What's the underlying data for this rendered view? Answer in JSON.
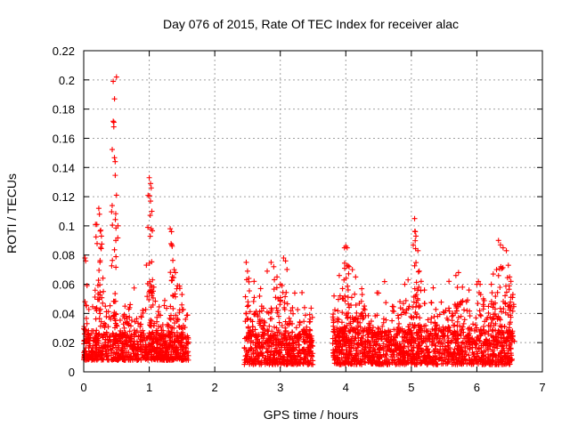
{
  "chart_data": {
    "type": "scatter",
    "title": "Day 076 of 2015, Rate Of TEC Index for receiver alac",
    "xlabel": "GPS time / hours",
    "ylabel": "ROTI / TECUs",
    "xlim": [
      0,
      7
    ],
    "ylim": [
      0,
      0.22
    ],
    "xticks": [
      0,
      1,
      2,
      3,
      4,
      5,
      6,
      7
    ],
    "yticks": [
      0,
      0.02,
      0.04,
      0.06,
      0.08,
      0.1,
      0.12,
      0.14,
      0.16,
      0.18,
      0.2,
      0.22
    ],
    "grid": true,
    "marker": "+",
    "marker_color": "#ff0000",
    "series": [
      {
        "name": "ROTI",
        "data_segments": [
          {
            "x_start": 0.0,
            "x_end": 1.6,
            "baseline": [
              0.008,
              0.025
            ]
          },
          {
            "x_start": 2.45,
            "x_end": 3.5,
            "baseline": [
              0.005,
              0.025
            ]
          },
          {
            "x_start": 3.8,
            "x_end": 6.55,
            "baseline": [
              0.005,
              0.028
            ]
          }
        ],
        "peaks": [
          {
            "x": 0.02,
            "y": 0.078
          },
          {
            "x": 0.03,
            "y": 0.076
          },
          {
            "x": 0.02,
            "y": 0.048
          },
          {
            "x": 0.18,
            "y": 0.101
          },
          {
            "x": 0.2,
            "y": 0.101
          },
          {
            "x": 0.23,
            "y": 0.112
          },
          {
            "x": 0.24,
            "y": 0.108
          },
          {
            "x": 0.26,
            "y": 0.097
          },
          {
            "x": 0.27,
            "y": 0.093
          },
          {
            "x": 0.3,
            "y": 0.055
          },
          {
            "x": 0.33,
            "y": 0.045
          },
          {
            "x": 0.45,
            "y": 0.199
          },
          {
            "x": 0.5,
            "y": 0.202
          },
          {
            "x": 0.47,
            "y": 0.187
          },
          {
            "x": 0.46,
            "y": 0.171
          },
          {
            "x": 0.48,
            "y": 0.144
          },
          {
            "x": 0.5,
            "y": 0.121
          },
          {
            "x": 0.49,
            "y": 0.09
          },
          {
            "x": 0.63,
            "y": 0.045
          },
          {
            "x": 0.7,
            "y": 0.044
          },
          {
            "x": 0.98,
            "y": 0.099
          },
          {
            "x": 1.0,
            "y": 0.133
          },
          {
            "x": 1.02,
            "y": 0.129
          },
          {
            "x": 1.03,
            "y": 0.126
          },
          {
            "x": 1.02,
            "y": 0.117
          },
          {
            "x": 1.04,
            "y": 0.11
          },
          {
            "x": 1.05,
            "y": 0.063
          },
          {
            "x": 1.07,
            "y": 0.058
          },
          {
            "x": 1.32,
            "y": 0.098
          },
          {
            "x": 1.34,
            "y": 0.096
          },
          {
            "x": 1.35,
            "y": 0.086
          },
          {
            "x": 1.38,
            "y": 0.07
          },
          {
            "x": 1.4,
            "y": 0.068
          },
          {
            "x": 1.43,
            "y": 0.059
          },
          {
            "x": 1.5,
            "y": 0.053
          },
          {
            "x": 2.48,
            "y": 0.075
          },
          {
            "x": 2.5,
            "y": 0.069
          },
          {
            "x": 2.52,
            "y": 0.064
          },
          {
            "x": 2.6,
            "y": 0.062
          },
          {
            "x": 2.7,
            "y": 0.057
          },
          {
            "x": 2.8,
            "y": 0.069
          },
          {
            "x": 2.86,
            "y": 0.075
          },
          {
            "x": 2.9,
            "y": 0.072
          },
          {
            "x": 2.95,
            "y": 0.065
          },
          {
            "x": 3.0,
            "y": 0.06
          },
          {
            "x": 3.05,
            "y": 0.078
          },
          {
            "x": 3.08,
            "y": 0.076
          },
          {
            "x": 3.45,
            "y": 0.029
          },
          {
            "x": 3.4,
            "y": 0.028
          },
          {
            "x": 3.82,
            "y": 0.052
          },
          {
            "x": 3.9,
            "y": 0.066
          },
          {
            "x": 3.95,
            "y": 0.057
          },
          {
            "x": 3.98,
            "y": 0.085
          },
          {
            "x": 4.0,
            "y": 0.086
          },
          {
            "x": 4.02,
            "y": 0.085
          },
          {
            "x": 4.05,
            "y": 0.072
          },
          {
            "x": 4.1,
            "y": 0.07
          },
          {
            "x": 4.15,
            "y": 0.065
          },
          {
            "x": 4.25,
            "y": 0.053
          },
          {
            "x": 4.9,
            "y": 0.06
          },
          {
            "x": 4.95,
            "y": 0.063
          },
          {
            "x": 5.05,
            "y": 0.105
          },
          {
            "x": 5.06,
            "y": 0.096
          },
          {
            "x": 5.07,
            "y": 0.093
          },
          {
            "x": 5.1,
            "y": 0.083
          },
          {
            "x": 5.12,
            "y": 0.069
          },
          {
            "x": 5.15,
            "y": 0.062
          },
          {
            "x": 5.2,
            "y": 0.056
          },
          {
            "x": 5.68,
            "y": 0.066
          },
          {
            "x": 5.72,
            "y": 0.068
          },
          {
            "x": 5.78,
            "y": 0.058
          },
          {
            "x": 5.88,
            "y": 0.056
          },
          {
            "x": 6.0,
            "y": 0.06
          },
          {
            "x": 6.05,
            "y": 0.06
          },
          {
            "x": 6.1,
            "y": 0.05
          },
          {
            "x": 6.22,
            "y": 0.06
          },
          {
            "x": 6.25,
            "y": 0.067
          },
          {
            "x": 6.3,
            "y": 0.07
          },
          {
            "x": 6.33,
            "y": 0.09
          },
          {
            "x": 6.36,
            "y": 0.087
          },
          {
            "x": 6.4,
            "y": 0.085
          },
          {
            "x": 6.45,
            "y": 0.083
          },
          {
            "x": 6.48,
            "y": 0.073
          },
          {
            "x": 6.5,
            "y": 0.065
          },
          {
            "x": 6.52,
            "y": 0.062
          },
          {
            "x": 6.55,
            "y": 0.053
          }
        ]
      }
    ]
  }
}
